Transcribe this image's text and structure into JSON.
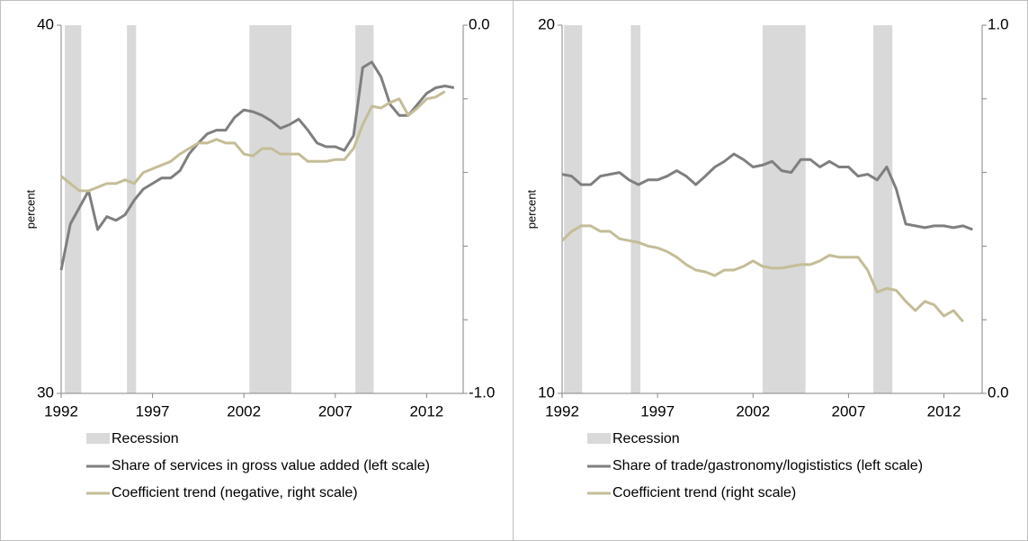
{
  "chart_data": [
    {
      "type": "line",
      "y_label": "percent",
      "x": [
        1992,
        1992.5,
        1993,
        1993.5,
        1994,
        1994.5,
        1995,
        1995.5,
        1996,
        1996.5,
        1997,
        1997.5,
        1998,
        1998.5,
        1999,
        1999.5,
        2000,
        2000.5,
        2001,
        2001.5,
        2002,
        2002.5,
        2003,
        2003.5,
        2004,
        2004.5,
        2005,
        2005.5,
        2006,
        2006.5,
        2007,
        2007.5,
        2008,
        2008.5,
        2009,
        2009.5,
        2010,
        2010.5,
        2011,
        2011.5,
        2012,
        2012.5,
        2013,
        2013.5
      ],
      "xlim": [
        1992,
        2014
      ],
      "xticks": [
        1992,
        1997,
        2002,
        2007,
        2012
      ],
      "ylim": [
        30,
        40
      ],
      "yticks": [
        30,
        40
      ],
      "y2lim": [
        -1,
        0
      ],
      "y2ticks": [
        {
          "value": -1,
          "label": "-1.0"
        },
        {
          "value": 0,
          "label": "0.0"
        }
      ],
      "y2minorticks": [
        -0.8,
        -0.6,
        -0.4,
        -0.2
      ],
      "recession": {
        "name": "Recession",
        "color": "#d9d9d9",
        "spans": [
          [
            1992.2,
            1993.1
          ],
          [
            1995.6,
            1996.1
          ],
          [
            2002.3,
            2004.6
          ],
          [
            2008.1,
            2009.1
          ]
        ]
      },
      "series": [
        {
          "name": "Share of services in gross value added (left scale)",
          "color": "#7f7f7f",
          "values": [
            33.35,
            34.6,
            35.05,
            35.5,
            34.45,
            34.8,
            34.7,
            34.85,
            35.25,
            35.55,
            35.7,
            35.85,
            35.85,
            36.05,
            36.5,
            36.8,
            37.05,
            37.15,
            37.15,
            37.5,
            37.7,
            37.65,
            37.55,
            37.4,
            37.2,
            37.3,
            37.45,
            37.15,
            36.8,
            36.7,
            36.7,
            36.6,
            37.0,
            38.85,
            39.0,
            38.6,
            37.85,
            37.55,
            37.55,
            37.85,
            38.15,
            38.3,
            38.35,
            38.3
          ]
        },
        {
          "name": "Coefficient trend (negative, right scale)",
          "color": "#c4bd97",
          "axis": "y2",
          "values": [
            -0.41,
            -0.43,
            -0.45,
            -0.45,
            -0.44,
            -0.43,
            -0.43,
            -0.42,
            -0.43,
            -0.4,
            -0.39,
            -0.38,
            -0.37,
            -0.35,
            -0.335,
            -0.32,
            -0.32,
            -0.31,
            -0.32,
            -0.32,
            -0.35,
            -0.355,
            -0.335,
            -0.335,
            -0.35,
            -0.35,
            -0.35,
            -0.37,
            -0.37,
            -0.37,
            -0.365,
            -0.365,
            -0.335,
            -0.27,
            -0.22,
            -0.225,
            -0.21,
            -0.2,
            -0.245,
            -0.225,
            -0.2,
            -0.195,
            -0.18,
            null
          ]
        }
      ]
    },
    {
      "type": "line",
      "y_label": "percent",
      "x": [
        1992,
        1992.5,
        1993,
        1993.5,
        1994,
        1994.5,
        1995,
        1995.5,
        1996,
        1996.5,
        1997,
        1997.5,
        1998,
        1998.5,
        1999,
        1999.5,
        2000,
        2000.5,
        2001,
        2001.5,
        2002,
        2002.5,
        2003,
        2003.5,
        2004,
        2004.5,
        2005,
        2005.5,
        2006,
        2006.5,
        2007,
        2007.5,
        2008,
        2008.5,
        2009,
        2009.5,
        2010,
        2010.5,
        2011,
        2011.5,
        2012,
        2012.5,
        2013,
        2013.5
      ],
      "xlim": [
        1992,
        2014
      ],
      "xticks": [
        1992,
        1997,
        2002,
        2007,
        2012
      ],
      "ylim": [
        10,
        20
      ],
      "yticks": [
        10,
        20
      ],
      "y2lim": [
        0,
        1
      ],
      "y2ticks": [
        {
          "value": 0,
          "label": "0.0"
        },
        {
          "value": 1,
          "label": "1.0"
        }
      ],
      "y2minorticks": [
        0.2,
        0.4,
        0.6,
        0.8
      ],
      "recession": {
        "name": "Recession",
        "color": "#d9d9d9",
        "spans": [
          [
            1992.1,
            1993.05
          ],
          [
            1995.6,
            1996.1
          ],
          [
            2002.5,
            2004.75
          ],
          [
            2008.3,
            2009.3
          ]
        ]
      },
      "series": [
        {
          "name": "Share of trade/gastronomy/logististics (left scale)",
          "color": "#7f7f7f",
          "values": [
            15.95,
            15.9,
            15.67,
            15.67,
            15.9,
            15.95,
            16.0,
            15.8,
            15.67,
            15.8,
            15.8,
            15.9,
            16.05,
            15.9,
            15.67,
            15.9,
            16.15,
            16.3,
            16.5,
            16.35,
            16.15,
            16.2,
            16.3,
            16.05,
            16.0,
            16.35,
            16.35,
            16.15,
            16.3,
            16.15,
            16.15,
            15.9,
            15.95,
            15.8,
            16.15,
            15.55,
            14.6,
            14.55,
            14.5,
            14.55,
            14.55,
            14.5,
            14.55,
            14.45
          ]
        },
        {
          "name": "Coefficient trend (right scale)",
          "color": "#c4bd97",
          "axis": "y2",
          "values": [
            0.415,
            0.44,
            0.455,
            0.455,
            0.44,
            0.44,
            0.42,
            0.415,
            0.41,
            0.4,
            0.395,
            0.385,
            0.37,
            0.35,
            0.335,
            0.33,
            0.32,
            0.335,
            0.335,
            0.345,
            0.36,
            0.345,
            0.34,
            0.34,
            0.345,
            0.35,
            0.35,
            0.36,
            0.375,
            0.37,
            0.37,
            0.37,
            0.335,
            0.275,
            0.285,
            0.28,
            0.25,
            0.225,
            0.25,
            0.24,
            0.21,
            0.225,
            0.195,
            null
          ]
        }
      ]
    }
  ]
}
